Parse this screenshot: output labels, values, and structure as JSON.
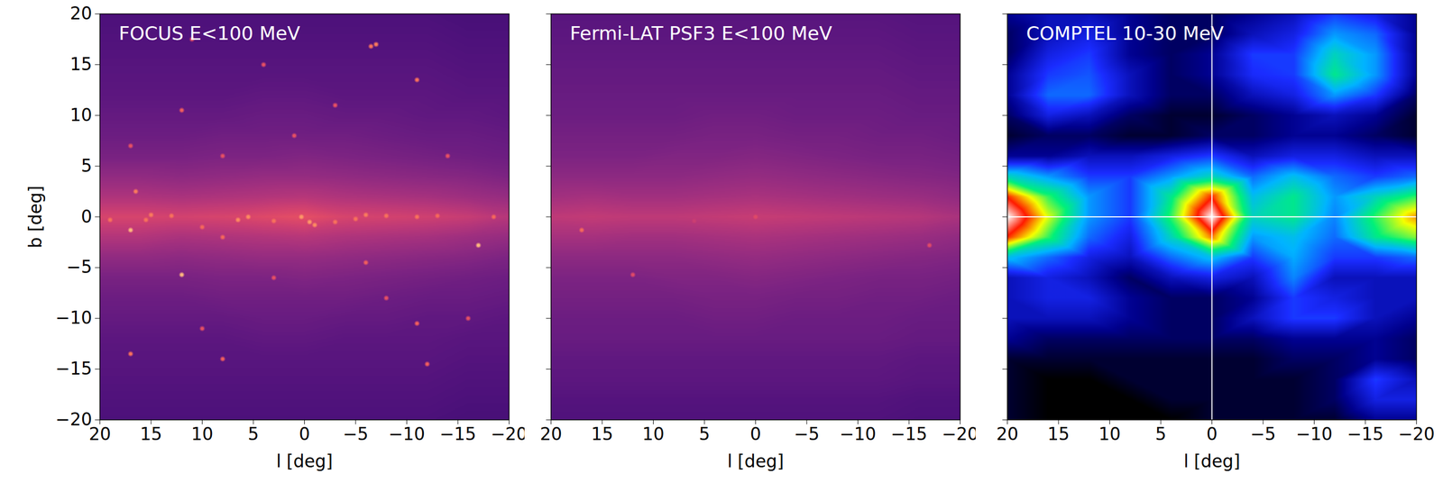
{
  "chart_data": [
    {
      "type": "heatmap",
      "title": "FOCUS E<100 MeV",
      "x_label": "l [deg]",
      "y_label": "b [deg]",
      "xlim": [
        20,
        -20
      ],
      "ylim": [
        -20,
        20
      ],
      "xticks": [
        20,
        15,
        10,
        5,
        0,
        -5,
        -10,
        -15,
        -20
      ],
      "yticks": [
        -20,
        -15,
        -10,
        -5,
        0,
        5,
        10,
        15,
        20
      ],
      "zlim": [
        0,
        1
      ],
      "map": {
        "l": [
          20,
          16,
          12,
          8,
          4,
          0,
          -4,
          -8,
          -12,
          -16,
          -20
        ],
        "b": [
          20,
          18,
          16,
          14,
          12,
          10,
          8,
          6,
          4,
          2,
          0,
          -2,
          -4,
          -6,
          -8,
          -10,
          -12,
          -14,
          -16,
          -18,
          -20
        ],
        "values": [
          [
            0.24,
            0.24,
            0.24,
            0.24,
            0.24,
            0.24,
            0.24,
            0.24,
            0.24,
            0.23,
            0.23
          ],
          [
            0.25,
            0.25,
            0.25,
            0.25,
            0.25,
            0.25,
            0.25,
            0.25,
            0.25,
            0.24,
            0.24
          ],
          [
            0.26,
            0.26,
            0.26,
            0.26,
            0.26,
            0.26,
            0.26,
            0.26,
            0.26,
            0.25,
            0.25
          ],
          [
            0.27,
            0.27,
            0.27,
            0.27,
            0.27,
            0.27,
            0.27,
            0.27,
            0.27,
            0.26,
            0.26
          ],
          [
            0.28,
            0.28,
            0.28,
            0.28,
            0.29,
            0.29,
            0.28,
            0.28,
            0.28,
            0.27,
            0.27
          ],
          [
            0.3,
            0.3,
            0.3,
            0.3,
            0.31,
            0.31,
            0.3,
            0.3,
            0.29,
            0.29,
            0.28
          ],
          [
            0.32,
            0.32,
            0.32,
            0.33,
            0.33,
            0.33,
            0.33,
            0.32,
            0.31,
            0.31,
            0.3
          ],
          [
            0.35,
            0.35,
            0.35,
            0.36,
            0.36,
            0.37,
            0.36,
            0.35,
            0.34,
            0.33,
            0.32
          ],
          [
            0.41,
            0.41,
            0.4,
            0.41,
            0.42,
            0.42,
            0.41,
            0.4,
            0.39,
            0.38,
            0.36
          ],
          [
            0.48,
            0.48,
            0.47,
            0.48,
            0.49,
            0.5,
            0.48,
            0.47,
            0.46,
            0.44,
            0.42
          ],
          [
            0.58,
            0.58,
            0.57,
            0.58,
            0.6,
            0.62,
            0.58,
            0.57,
            0.56,
            0.54,
            0.5
          ],
          [
            0.49,
            0.49,
            0.47,
            0.48,
            0.49,
            0.5,
            0.48,
            0.47,
            0.46,
            0.44,
            0.42
          ],
          [
            0.41,
            0.41,
            0.4,
            0.41,
            0.42,
            0.42,
            0.41,
            0.4,
            0.39,
            0.38,
            0.36
          ],
          [
            0.35,
            0.35,
            0.35,
            0.36,
            0.36,
            0.37,
            0.36,
            0.35,
            0.34,
            0.33,
            0.32
          ],
          [
            0.32,
            0.32,
            0.32,
            0.33,
            0.33,
            0.33,
            0.33,
            0.32,
            0.31,
            0.31,
            0.3
          ],
          [
            0.3,
            0.3,
            0.3,
            0.3,
            0.31,
            0.31,
            0.3,
            0.3,
            0.29,
            0.29,
            0.28
          ],
          [
            0.28,
            0.28,
            0.28,
            0.28,
            0.29,
            0.29,
            0.28,
            0.28,
            0.28,
            0.27,
            0.27
          ],
          [
            0.27,
            0.27,
            0.27,
            0.27,
            0.27,
            0.27,
            0.27,
            0.27,
            0.27,
            0.26,
            0.26
          ],
          [
            0.26,
            0.26,
            0.26,
            0.26,
            0.26,
            0.26,
            0.26,
            0.26,
            0.26,
            0.25,
            0.25
          ],
          [
            0.25,
            0.25,
            0.25,
            0.25,
            0.25,
            0.25,
            0.25,
            0.25,
            0.25,
            0.24,
            0.24
          ],
          [
            0.24,
            0.24,
            0.24,
            0.24,
            0.24,
            0.24,
            0.24,
            0.24,
            0.24,
            0.23,
            0.23
          ]
        ]
      },
      "sources": {
        "l": [
          17,
          16.5,
          19,
          15,
          13,
          12,
          10,
          8,
          6.5,
          5.5,
          3,
          0.3,
          -0.5,
          -1,
          -3,
          -5,
          -6,
          -8,
          -11,
          -13,
          -17,
          -7,
          -6.5,
          -11,
          17,
          12,
          -11,
          8,
          -12,
          -6,
          15.5,
          -18.5,
          8,
          1,
          -14,
          17,
          10,
          3,
          -8,
          11,
          -3,
          4,
          -16
        ],
        "b": [
          -1.3,
          2.5,
          -0.3,
          0.2,
          0.1,
          -5.7,
          -1,
          -2,
          -0.3,
          0,
          -0.4,
          0,
          -0.5,
          -0.8,
          -0.5,
          -0.2,
          0.2,
          0.1,
          0,
          0.1,
          -2.8,
          17,
          16.8,
          13.5,
          -13.5,
          10.5,
          -10.5,
          -14,
          -14.5,
          -4.5,
          -0.3,
          0,
          6,
          8,
          6,
          7,
          -11,
          -6,
          -8,
          17.5,
          11,
          15,
          -10
        ],
        "values": [
          0.85,
          0.72,
          0.7,
          0.72,
          0.7,
          0.85,
          0.68,
          0.68,
          0.75,
          0.75,
          0.7,
          0.78,
          0.78,
          0.75,
          0.7,
          0.7,
          0.72,
          0.7,
          0.7,
          0.68,
          0.85,
          0.72,
          0.7,
          0.7,
          0.7,
          0.66,
          0.66,
          0.66,
          0.66,
          0.66,
          0.7,
          0.68,
          0.62,
          0.62,
          0.62,
          0.62,
          0.62,
          0.62,
          0.62,
          0.62,
          0.62,
          0.62,
          0.62
        ]
      }
    },
    {
      "type": "heatmap",
      "title": "Fermi-LAT PSF3 E<100 MeV",
      "x_label": "l [deg]",
      "xlim": [
        20,
        -20
      ],
      "ylim": [
        -20,
        20
      ],
      "xticks": [
        20,
        15,
        10,
        5,
        0,
        -5,
        -10,
        -15,
        -20
      ],
      "yticks": [
        -20,
        -15,
        -10,
        -5,
        0,
        5,
        10,
        15,
        20
      ],
      "tick_labels": "x",
      "zlim": [
        0,
        1
      ],
      "map": {
        "l": [
          20,
          16,
          12,
          8,
          4,
          0,
          -4,
          -8,
          -12,
          -16,
          -20
        ],
        "b": [
          20,
          18,
          16,
          14,
          12,
          10,
          8,
          6,
          4,
          2,
          0,
          -2,
          -4,
          -6,
          -8,
          -10,
          -12,
          -14,
          -16,
          -18,
          -20
        ],
        "values": [
          [
            0.27,
            0.27,
            0.27,
            0.27,
            0.27,
            0.27,
            0.27,
            0.27,
            0.27,
            0.26,
            0.26
          ],
          [
            0.28,
            0.28,
            0.28,
            0.28,
            0.28,
            0.28,
            0.28,
            0.28,
            0.28,
            0.27,
            0.27
          ],
          [
            0.29,
            0.29,
            0.29,
            0.29,
            0.29,
            0.29,
            0.29,
            0.29,
            0.29,
            0.28,
            0.28
          ],
          [
            0.3,
            0.3,
            0.3,
            0.3,
            0.3,
            0.3,
            0.3,
            0.3,
            0.3,
            0.29,
            0.29
          ],
          [
            0.31,
            0.31,
            0.31,
            0.31,
            0.31,
            0.31,
            0.31,
            0.31,
            0.31,
            0.3,
            0.3
          ],
          [
            0.32,
            0.32,
            0.32,
            0.32,
            0.33,
            0.33,
            0.32,
            0.32,
            0.32,
            0.31,
            0.31
          ],
          [
            0.34,
            0.34,
            0.34,
            0.34,
            0.35,
            0.35,
            0.34,
            0.34,
            0.33,
            0.33,
            0.32
          ],
          [
            0.36,
            0.36,
            0.36,
            0.37,
            0.37,
            0.38,
            0.37,
            0.36,
            0.35,
            0.35,
            0.34
          ],
          [
            0.4,
            0.4,
            0.4,
            0.4,
            0.41,
            0.42,
            0.41,
            0.4,
            0.39,
            0.38,
            0.37
          ],
          [
            0.45,
            0.46,
            0.45,
            0.45,
            0.46,
            0.47,
            0.46,
            0.45,
            0.44,
            0.43,
            0.41
          ],
          [
            0.52,
            0.53,
            0.52,
            0.52,
            0.53,
            0.54,
            0.53,
            0.52,
            0.51,
            0.5,
            0.47
          ],
          [
            0.46,
            0.46,
            0.45,
            0.45,
            0.46,
            0.47,
            0.46,
            0.45,
            0.44,
            0.43,
            0.41
          ],
          [
            0.4,
            0.4,
            0.4,
            0.4,
            0.41,
            0.42,
            0.41,
            0.4,
            0.39,
            0.38,
            0.37
          ],
          [
            0.36,
            0.36,
            0.36,
            0.37,
            0.37,
            0.38,
            0.37,
            0.36,
            0.35,
            0.35,
            0.34
          ],
          [
            0.34,
            0.34,
            0.34,
            0.34,
            0.35,
            0.35,
            0.34,
            0.34,
            0.33,
            0.33,
            0.32
          ],
          [
            0.32,
            0.32,
            0.32,
            0.32,
            0.33,
            0.33,
            0.32,
            0.32,
            0.32,
            0.31,
            0.31
          ],
          [
            0.31,
            0.31,
            0.31,
            0.31,
            0.31,
            0.31,
            0.31,
            0.31,
            0.31,
            0.3,
            0.3
          ],
          [
            0.29,
            0.29,
            0.29,
            0.29,
            0.29,
            0.29,
            0.29,
            0.29,
            0.29,
            0.28,
            0.28
          ],
          [
            0.28,
            0.28,
            0.28,
            0.28,
            0.28,
            0.28,
            0.28,
            0.28,
            0.28,
            0.27,
            0.27
          ],
          [
            0.26,
            0.26,
            0.26,
            0.26,
            0.26,
            0.26,
            0.26,
            0.26,
            0.26,
            0.25,
            0.25
          ],
          [
            0.25,
            0.25,
            0.25,
            0.25,
            0.25,
            0.25,
            0.25,
            0.25,
            0.25,
            0.24,
            0.24
          ]
        ]
      },
      "sources": {
        "l": [
          17,
          12,
          -17,
          0,
          6
        ],
        "b": [
          -1.3,
          -5.7,
          -2.8,
          0,
          -0.4
        ],
        "values": [
          0.68,
          0.6,
          0.6,
          0.6,
          0.55
        ]
      }
    },
    {
      "type": "heatmap",
      "title": "COMPTEL 10-30 MeV",
      "x_label": "l [deg]",
      "xlim": [
        20,
        -20
      ],
      "ylim": [
        -20,
        20
      ],
      "xticks": [
        20,
        15,
        10,
        5,
        0,
        -5,
        -10,
        -15,
        -20
      ],
      "yticks": [
        -20,
        -15,
        -10,
        -5,
        0,
        5,
        10,
        15,
        20
      ],
      "tick_labels": "x",
      "zlim": [
        0,
        1
      ],
      "guides": {
        "l": 0,
        "b": 0
      },
      "map": {
        "l": [
          20,
          16,
          12,
          8,
          4,
          0,
          -4,
          -8,
          -12,
          -16,
          -20
        ],
        "b": [
          20,
          18,
          16,
          14,
          12,
          10,
          8,
          6,
          4,
          2,
          0,
          -2,
          -4,
          -6,
          -8,
          -10,
          -12,
          -14,
          -16,
          -18,
          -20
        ],
        "values": [
          [
            0.15,
            0.2,
            0.2,
            0.15,
            0.1,
            0.1,
            0.15,
            0.2,
            0.3,
            0.25,
            0.15
          ],
          [
            0.1,
            0.2,
            0.25,
            0.15,
            0.1,
            0.1,
            0.2,
            0.25,
            0.4,
            0.35,
            0.15
          ],
          [
            0.1,
            0.25,
            0.3,
            0.15,
            0.1,
            0.15,
            0.3,
            0.3,
            0.5,
            0.4,
            0.15
          ],
          [
            0.15,
            0.3,
            0.33,
            0.2,
            0.1,
            0.15,
            0.28,
            0.3,
            0.55,
            0.4,
            0.15
          ],
          [
            0.15,
            0.35,
            0.35,
            0.2,
            0.1,
            0.1,
            0.2,
            0.25,
            0.4,
            0.3,
            0.1
          ],
          [
            0.1,
            0.25,
            0.2,
            0.1,
            0.05,
            0.05,
            0.1,
            0.15,
            0.2,
            0.15,
            0.05
          ],
          [
            0.05,
            0.1,
            0.1,
            0.05,
            0.05,
            0.1,
            0.1,
            0.15,
            0.15,
            0.1,
            0.05
          ],
          [
            0.15,
            0.15,
            0.2,
            0.2,
            0.25,
            0.3,
            0.2,
            0.25,
            0.25,
            0.2,
            0.2
          ],
          [
            0.5,
            0.4,
            0.3,
            0.3,
            0.4,
            0.5,
            0.35,
            0.45,
            0.35,
            0.3,
            0.35
          ],
          [
            0.85,
            0.6,
            0.4,
            0.3,
            0.55,
            0.85,
            0.45,
            0.55,
            0.4,
            0.5,
            0.6
          ],
          [
            1.0,
            0.7,
            0.4,
            0.3,
            0.6,
            1.0,
            0.5,
            0.55,
            0.38,
            0.6,
            0.78
          ],
          [
            0.85,
            0.6,
            0.35,
            0.25,
            0.5,
            0.8,
            0.4,
            0.45,
            0.35,
            0.55,
            0.65
          ],
          [
            0.45,
            0.35,
            0.25,
            0.2,
            0.35,
            0.45,
            0.3,
            0.42,
            0.3,
            0.3,
            0.35
          ],
          [
            0.2,
            0.25,
            0.2,
            0.1,
            0.2,
            0.25,
            0.2,
            0.38,
            0.2,
            0.2,
            0.2
          ],
          [
            0.2,
            0.25,
            0.25,
            0.15,
            0.1,
            0.1,
            0.15,
            0.3,
            0.25,
            0.2,
            0.2
          ],
          [
            0.2,
            0.2,
            0.2,
            0.15,
            0.1,
            0.1,
            0.2,
            0.3,
            0.3,
            0.2,
            0.15
          ],
          [
            0.15,
            0.1,
            0.1,
            0.1,
            0.1,
            0.1,
            0.1,
            0.15,
            0.15,
            0.15,
            0.1
          ],
          [
            0.05,
            0.05,
            0.05,
            0.05,
            0.05,
            0.05,
            0.05,
            0.1,
            0.1,
            0.15,
            0.1
          ],
          [
            0.05,
            0.0,
            0.0,
            0.05,
            0.05,
            0.05,
            0.05,
            0.05,
            0.1,
            0.3,
            0.2
          ],
          [
            0.05,
            0.0,
            0.0,
            0.0,
            0.05,
            0.05,
            0.05,
            0.05,
            0.1,
            0.25,
            0.25
          ],
          [
            0.05,
            0.0,
            0.0,
            0.0,
            0.0,
            0.05,
            0.05,
            0.05,
            0.05,
            0.15,
            0.15
          ]
        ]
      }
    }
  ]
}
